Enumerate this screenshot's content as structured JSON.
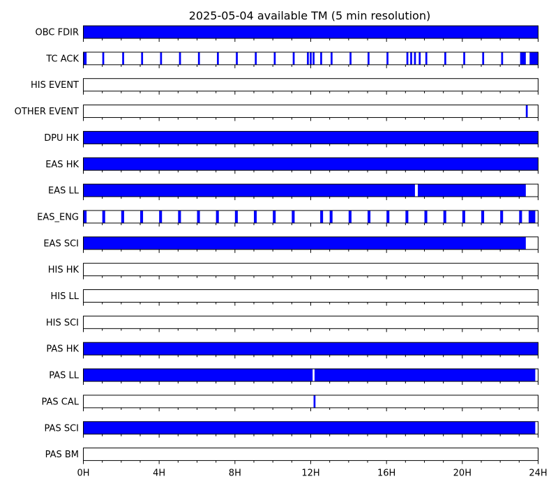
{
  "chart_data": {
    "type": "timeline",
    "title": "2025-05-04 available TM (5 min resolution)",
    "x_unit": "hours",
    "xlim": [
      0,
      24
    ],
    "x_ticks": [
      0,
      4,
      8,
      12,
      16,
      20,
      24
    ],
    "x_tick_labels": [
      "0H",
      "4H",
      "8H",
      "12H",
      "16H",
      "20H",
      "24H"
    ],
    "minor_tick_step": 1,
    "bar_color": "#0000ff",
    "rows": [
      {
        "label": "OBC FDIR",
        "segments": [
          [
            0,
            24
          ]
        ]
      },
      {
        "label": "TC ACK",
        "segments": [
          [
            0.0,
            0.17
          ],
          [
            1.0,
            1.1
          ],
          [
            2.05,
            2.15
          ],
          [
            3.05,
            3.15
          ],
          [
            4.05,
            4.15
          ],
          [
            5.05,
            5.15
          ],
          [
            6.05,
            6.15
          ],
          [
            7.05,
            7.15
          ],
          [
            8.05,
            8.15
          ],
          [
            9.05,
            9.15
          ],
          [
            10.05,
            10.15
          ],
          [
            11.05,
            11.15
          ],
          [
            11.8,
            11.9
          ],
          [
            11.95,
            12.05
          ],
          [
            12.1,
            12.2
          ],
          [
            12.5,
            12.6
          ],
          [
            13.05,
            13.15
          ],
          [
            14.05,
            14.15
          ],
          [
            15.0,
            15.1
          ],
          [
            16.0,
            16.1
          ],
          [
            17.05,
            17.15
          ],
          [
            17.25,
            17.35
          ],
          [
            17.45,
            17.55
          ],
          [
            17.7,
            17.8
          ],
          [
            18.05,
            18.15
          ],
          [
            19.05,
            19.15
          ],
          [
            20.05,
            20.15
          ],
          [
            21.05,
            21.15
          ],
          [
            22.05,
            22.15
          ],
          [
            23.05,
            23.35
          ],
          [
            23.55,
            24
          ]
        ]
      },
      {
        "label": "HIS EVENT",
        "segments": []
      },
      {
        "label": "OTHER EVENT",
        "segments": [
          [
            23.35,
            23.45
          ]
        ]
      },
      {
        "label": "DPU HK",
        "segments": [
          [
            0,
            24
          ]
        ]
      },
      {
        "label": "EAS HK",
        "segments": [
          [
            0,
            24
          ]
        ]
      },
      {
        "label": "EAS LL",
        "segments": [
          [
            0,
            17.5
          ],
          [
            17.65,
            23.35
          ]
        ]
      },
      {
        "label": "EAS_ENG",
        "segments": [
          [
            0.0,
            0.17
          ],
          [
            1.0,
            1.15
          ],
          [
            2.0,
            2.15
          ],
          [
            3.0,
            3.15
          ],
          [
            4.0,
            4.15
          ],
          [
            5.0,
            5.15
          ],
          [
            6.0,
            6.15
          ],
          [
            7.0,
            7.15
          ],
          [
            8.0,
            8.15
          ],
          [
            9.0,
            9.15
          ],
          [
            10.0,
            10.15
          ],
          [
            11.0,
            11.15
          ],
          [
            12.5,
            12.65
          ],
          [
            13.0,
            13.15
          ],
          [
            14.0,
            14.15
          ],
          [
            15.0,
            15.15
          ],
          [
            16.0,
            16.15
          ],
          [
            17.0,
            17.15
          ],
          [
            18.0,
            18.15
          ],
          [
            19.0,
            19.15
          ],
          [
            20.0,
            20.15
          ],
          [
            21.0,
            21.15
          ],
          [
            22.0,
            22.15
          ],
          [
            23.0,
            23.15
          ],
          [
            23.5,
            23.85
          ]
        ]
      },
      {
        "label": "EAS SCI",
        "segments": [
          [
            0,
            23.35
          ]
        ]
      },
      {
        "label": "HIS HK",
        "segments": []
      },
      {
        "label": "HIS LL",
        "segments": []
      },
      {
        "label": "HIS SCI",
        "segments": []
      },
      {
        "label": "PAS HK",
        "segments": [
          [
            0,
            24
          ]
        ]
      },
      {
        "label": "PAS LL",
        "segments": [
          [
            0,
            12.1
          ],
          [
            12.2,
            23.85
          ]
        ]
      },
      {
        "label": "PAS CAL",
        "segments": [
          [
            12.15,
            12.25
          ]
        ]
      },
      {
        "label": "PAS SCI",
        "segments": [
          [
            0,
            23.85
          ]
        ]
      },
      {
        "label": "PAS BM",
        "segments": []
      }
    ]
  }
}
